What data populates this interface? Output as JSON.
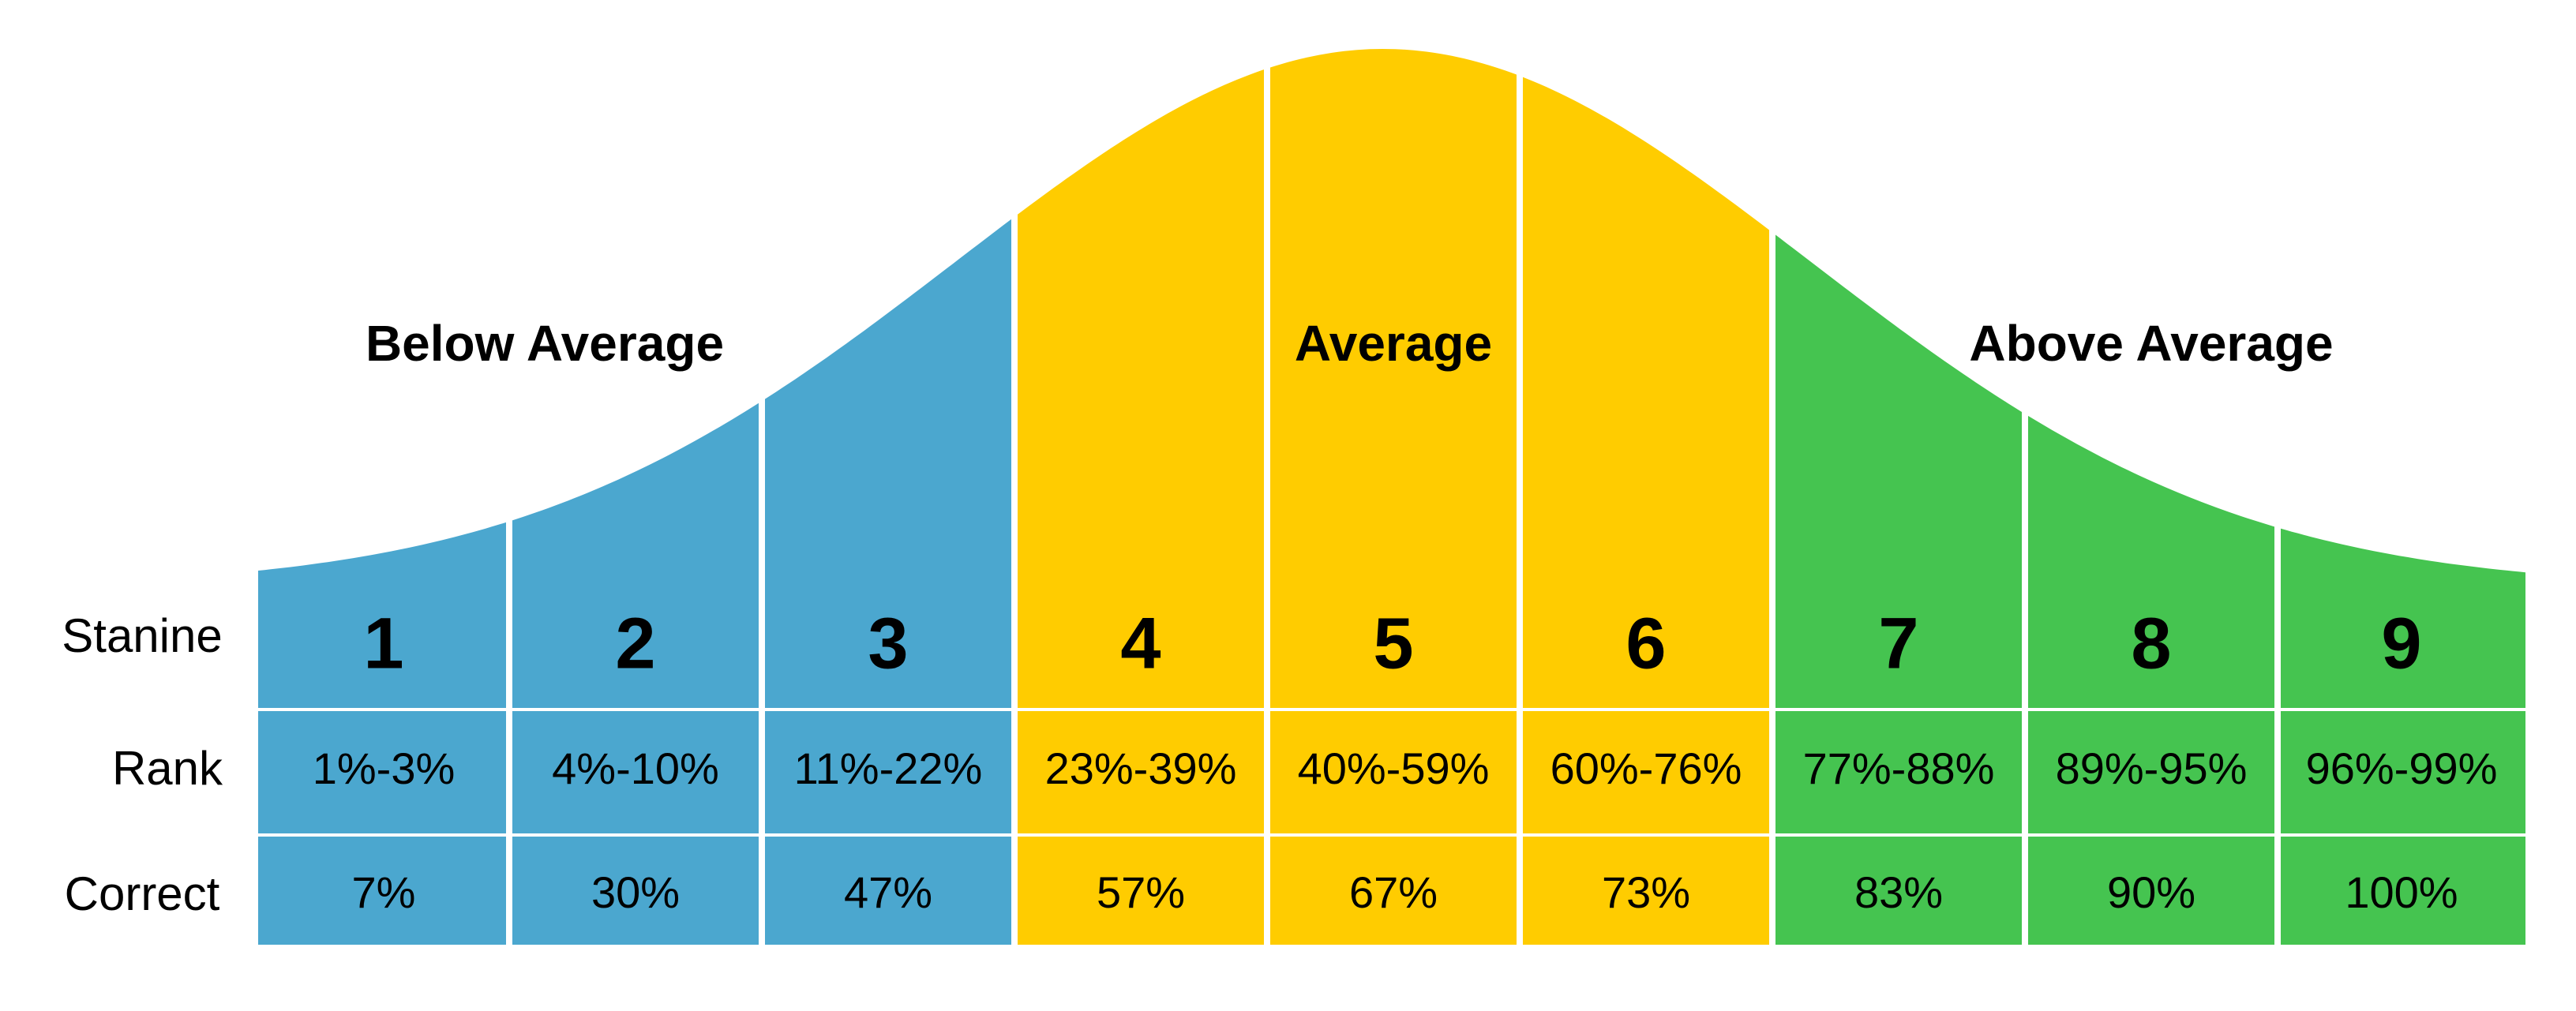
{
  "groups": [
    {
      "label": "Below Average",
      "color": "#4BA7CF"
    },
    {
      "label": "Average",
      "color": "#FFCC00"
    },
    {
      "label": "Above Average",
      "color": "#45C450"
    }
  ],
  "rows": {
    "stanine": "Stanine",
    "rank": "Rank",
    "correct": "Correct"
  },
  "columns": [
    {
      "stanine": "1",
      "rank": "1%-3%",
      "correct": "7%",
      "group": 0
    },
    {
      "stanine": "2",
      "rank": "4%-10%",
      "correct": "30%",
      "group": 0
    },
    {
      "stanine": "3",
      "rank": "11%-22%",
      "correct": "47%",
      "group": 0
    },
    {
      "stanine": "4",
      "rank": "23%-39%",
      "correct": "57%",
      "group": 1
    },
    {
      "stanine": "5",
      "rank": "40%-59%",
      "correct": "67%",
      "group": 1
    },
    {
      "stanine": "6",
      "rank": "60%-76%",
      "correct": "73%",
      "group": 1
    },
    {
      "stanine": "7",
      "rank": "77%-88%",
      "correct": "83%",
      "group": 2
    },
    {
      "stanine": "8",
      "rank": "89%-95%",
      "correct": "90%",
      "group": 2
    },
    {
      "stanine": "9",
      "rank": "96%-99%",
      "correct": "100%",
      "group": 2
    }
  ]
}
